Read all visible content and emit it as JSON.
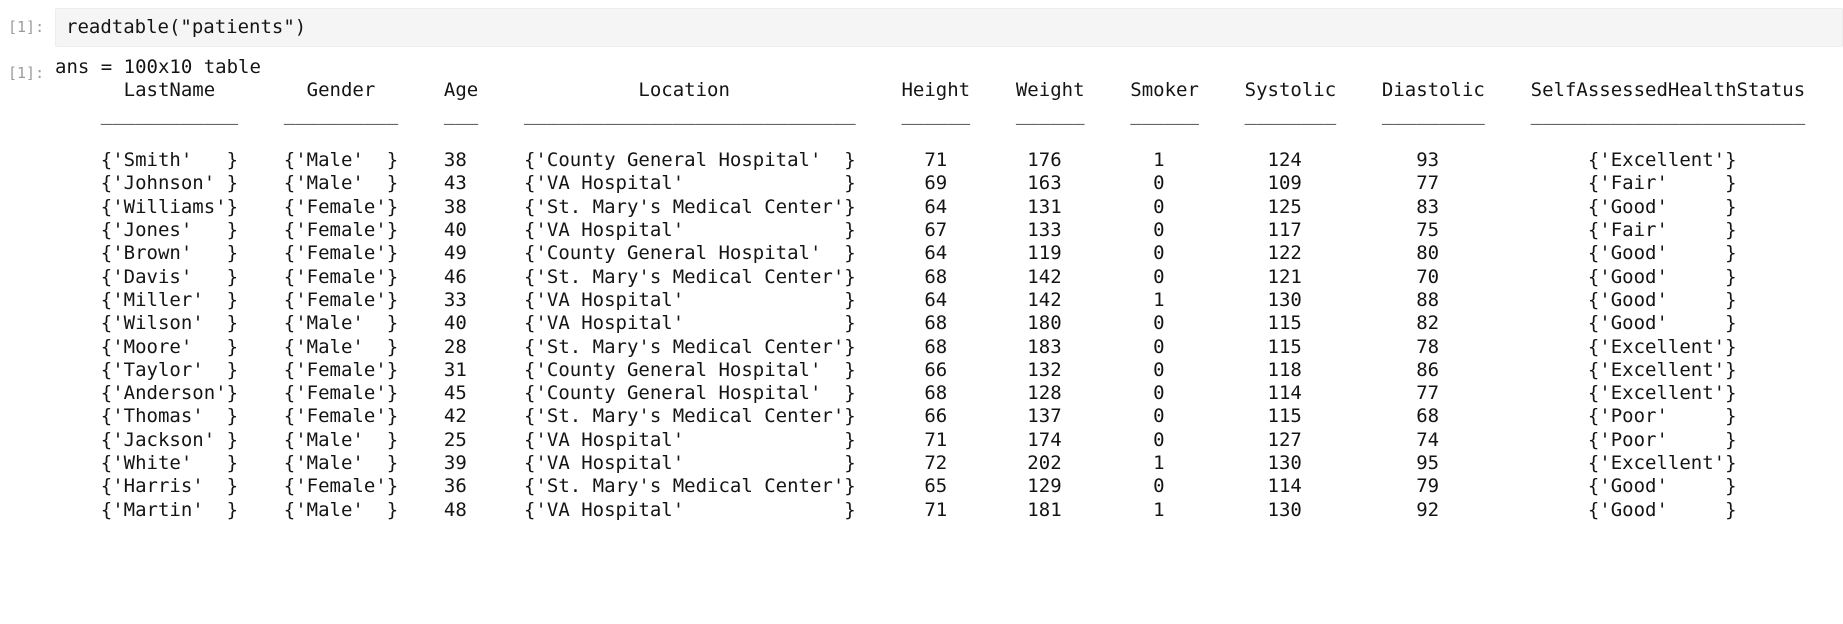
{
  "notebook": {
    "input": {
      "prompt": "[1]:",
      "code": "readtable(\"patients\")"
    },
    "output": {
      "prompt": "[1]:",
      "summary": "ans = 100x10 table",
      "table": {
        "indent": 4,
        "gap": 4,
        "rule_char": "_",
        "columns": [
          {
            "label": "LastName",
            "width": 12,
            "brace": 12,
            "align": "left"
          },
          {
            "label": "Gender",
            "width": 10,
            "brace": 10,
            "align": "left"
          },
          {
            "label": "Age",
            "width": 3,
            "align": "center"
          },
          {
            "label": "Location",
            "width": 29,
            "brace": 29,
            "align": "left"
          },
          {
            "label": "Height",
            "width": 6,
            "align": "center"
          },
          {
            "label": "Weight",
            "width": 6,
            "align": "center"
          },
          {
            "label": "Smoker",
            "width": 6,
            "align": "center"
          },
          {
            "label": "Systolic",
            "width": 8,
            "align": "center"
          },
          {
            "label": "Diastolic",
            "width": 9,
            "align": "center"
          },
          {
            "label": "SelfAssessedHealthStatus",
            "width": 24,
            "brace": 13,
            "align": "center"
          }
        ],
        "rows": [
          [
            "Smith",
            "Male",
            38,
            "County General Hospital",
            71,
            176,
            1,
            124,
            93,
            "Excellent"
          ],
          [
            "Johnson",
            "Male",
            43,
            "VA Hospital",
            69,
            163,
            0,
            109,
            77,
            "Fair"
          ],
          [
            "Williams",
            "Female",
            38,
            "St. Mary's Medical Center",
            64,
            131,
            0,
            125,
            83,
            "Good"
          ],
          [
            "Jones",
            "Female",
            40,
            "VA Hospital",
            67,
            133,
            0,
            117,
            75,
            "Fair"
          ],
          [
            "Brown",
            "Female",
            49,
            "County General Hospital",
            64,
            119,
            0,
            122,
            80,
            "Good"
          ],
          [
            "Davis",
            "Female",
            46,
            "St. Mary's Medical Center",
            68,
            142,
            0,
            121,
            70,
            "Good"
          ],
          [
            "Miller",
            "Female",
            33,
            "VA Hospital",
            64,
            142,
            1,
            130,
            88,
            "Good"
          ],
          [
            "Wilson",
            "Male",
            40,
            "VA Hospital",
            68,
            180,
            0,
            115,
            82,
            "Good"
          ],
          [
            "Moore",
            "Male",
            28,
            "St. Mary's Medical Center",
            68,
            183,
            0,
            115,
            78,
            "Excellent"
          ],
          [
            "Taylor",
            "Female",
            31,
            "County General Hospital",
            66,
            132,
            0,
            118,
            86,
            "Excellent"
          ],
          [
            "Anderson",
            "Female",
            45,
            "County General Hospital",
            68,
            128,
            0,
            114,
            77,
            "Excellent"
          ],
          [
            "Thomas",
            "Female",
            42,
            "St. Mary's Medical Center",
            66,
            137,
            0,
            115,
            68,
            "Poor"
          ],
          [
            "Jackson",
            "Male",
            25,
            "VA Hospital",
            71,
            174,
            0,
            127,
            74,
            "Poor"
          ],
          [
            "White",
            "Male",
            39,
            "VA Hospital",
            72,
            202,
            1,
            130,
            95,
            "Excellent"
          ],
          [
            "Harris",
            "Female",
            36,
            "St. Mary's Medical Center",
            65,
            129,
            0,
            114,
            79,
            "Good"
          ],
          [
            "Martin",
            "Male",
            48,
            "VA Hospital",
            71,
            181,
            1,
            130,
            92,
            "Good"
          ]
        ]
      }
    }
  },
  "colors": {
    "page_bg": "#ffffff",
    "input_bg": "#f5f5f5",
    "input_border": "#ededed",
    "prompt": "#9b9b9b",
    "text": "#141414"
  }
}
